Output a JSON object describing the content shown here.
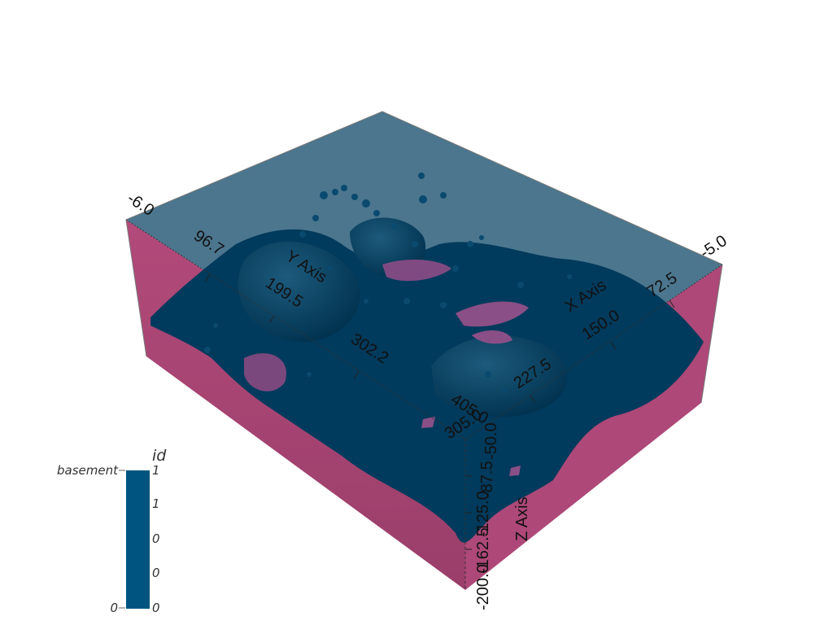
{
  "scene": {
    "colors": {
      "background": "#ffffff",
      "geology_unit": "#003a5c",
      "basement": "#b04a78",
      "box_top": "#3c6a84",
      "legend_bar": "#005580"
    },
    "x_axis": {
      "title": "X Axis",
      "ticks": [
        "-5.0",
        "72.5",
        "150.0",
        "227.5",
        "305.0"
      ]
    },
    "y_axis": {
      "title": "Y Axis",
      "ticks": [
        "-6.0",
        "96.7",
        "199.5",
        "302.2",
        "405.0"
      ]
    },
    "z_axis": {
      "title": "Z Axis",
      "ticks": [
        "-50.0",
        "-87.5",
        "-125.0",
        "-162.5",
        "-200.0"
      ]
    },
    "legend": {
      "title": "id",
      "category_labels": [
        "basement",
        "0"
      ],
      "tick_labels": [
        "1",
        "1",
        "0",
        "0",
        "0"
      ]
    }
  }
}
